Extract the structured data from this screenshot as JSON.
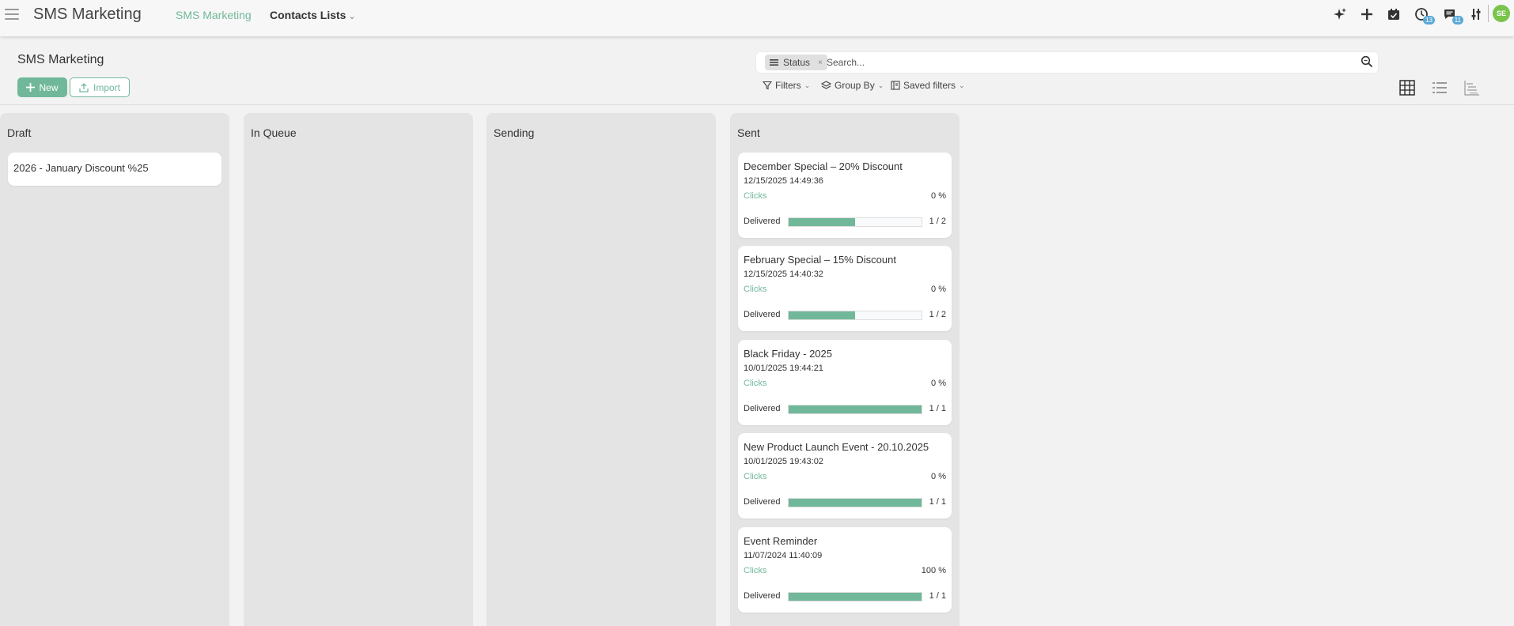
{
  "app": {
    "title": "SMS Marketing"
  },
  "nav": {
    "items": [
      {
        "label": "SMS Marketing",
        "active": true
      },
      {
        "label": "Contacts Lists",
        "active": false
      }
    ]
  },
  "systray": {
    "icons": [
      "ai-sparkle-icon",
      "plus-icon",
      "calendar-icon",
      "activity-clock-icon",
      "messages-icon",
      "settings-sliders-icon"
    ],
    "activity_count": "13",
    "messages_count": "11",
    "avatar_initials": "SE"
  },
  "control_panel": {
    "title": "SMS Marketing",
    "new_label": "New",
    "import_label": "Import",
    "search": {
      "facet_label": "Status",
      "placeholder": "Search..."
    },
    "filters_label": "Filters",
    "group_by_label": "Group By",
    "saved_filters_label": "Saved filters"
  },
  "kanban": {
    "columns": [
      {
        "title": "Draft",
        "cards": [
          {
            "title": "2026 - January Discount %25"
          }
        ]
      },
      {
        "title": "In Queue",
        "cards": []
      },
      {
        "title": "Sending",
        "cards": []
      },
      {
        "title": "Sent",
        "cards": [
          {
            "title": "December Special – 20% Discount",
            "date": "12/15/2025 14:49:36",
            "clicks_label": "Clicks",
            "clicks": "0 %",
            "delivered_label": "Delivered",
            "delivered": "1 / 2",
            "delivered_fraction": 0.5
          },
          {
            "title": "February Special – 15% Discount",
            "date": "12/15/2025 14:40:32",
            "clicks_label": "Clicks",
            "clicks": "0 %",
            "delivered_label": "Delivered",
            "delivered": "1 / 2",
            "delivered_fraction": 0.5
          },
          {
            "title": "Black Friday - 2025",
            "date": "10/01/2025 19:44:21",
            "clicks_label": "Clicks",
            "clicks": "0 %",
            "delivered_label": "Delivered",
            "delivered": "1 / 1",
            "delivered_fraction": 1.0
          },
          {
            "title": "New Product Launch Event - 20.10.2025",
            "date": "10/01/2025 19:43:02",
            "clicks_label": "Clicks",
            "clicks": "0 %",
            "delivered_label": "Delivered",
            "delivered": "1 / 1",
            "delivered_fraction": 1.0
          },
          {
            "title": "Event Reminder",
            "date": "11/07/2024 11:40:09",
            "clicks_label": "Clicks",
            "clicks": "100 %",
            "delivered_label": "Delivered",
            "delivered": "1 / 1",
            "delivered_fraction": 1.0
          }
        ]
      }
    ]
  },
  "colors": {
    "accent": "#71b89a",
    "badge": "#5aa9d6",
    "avatar": "#7ac34c"
  }
}
